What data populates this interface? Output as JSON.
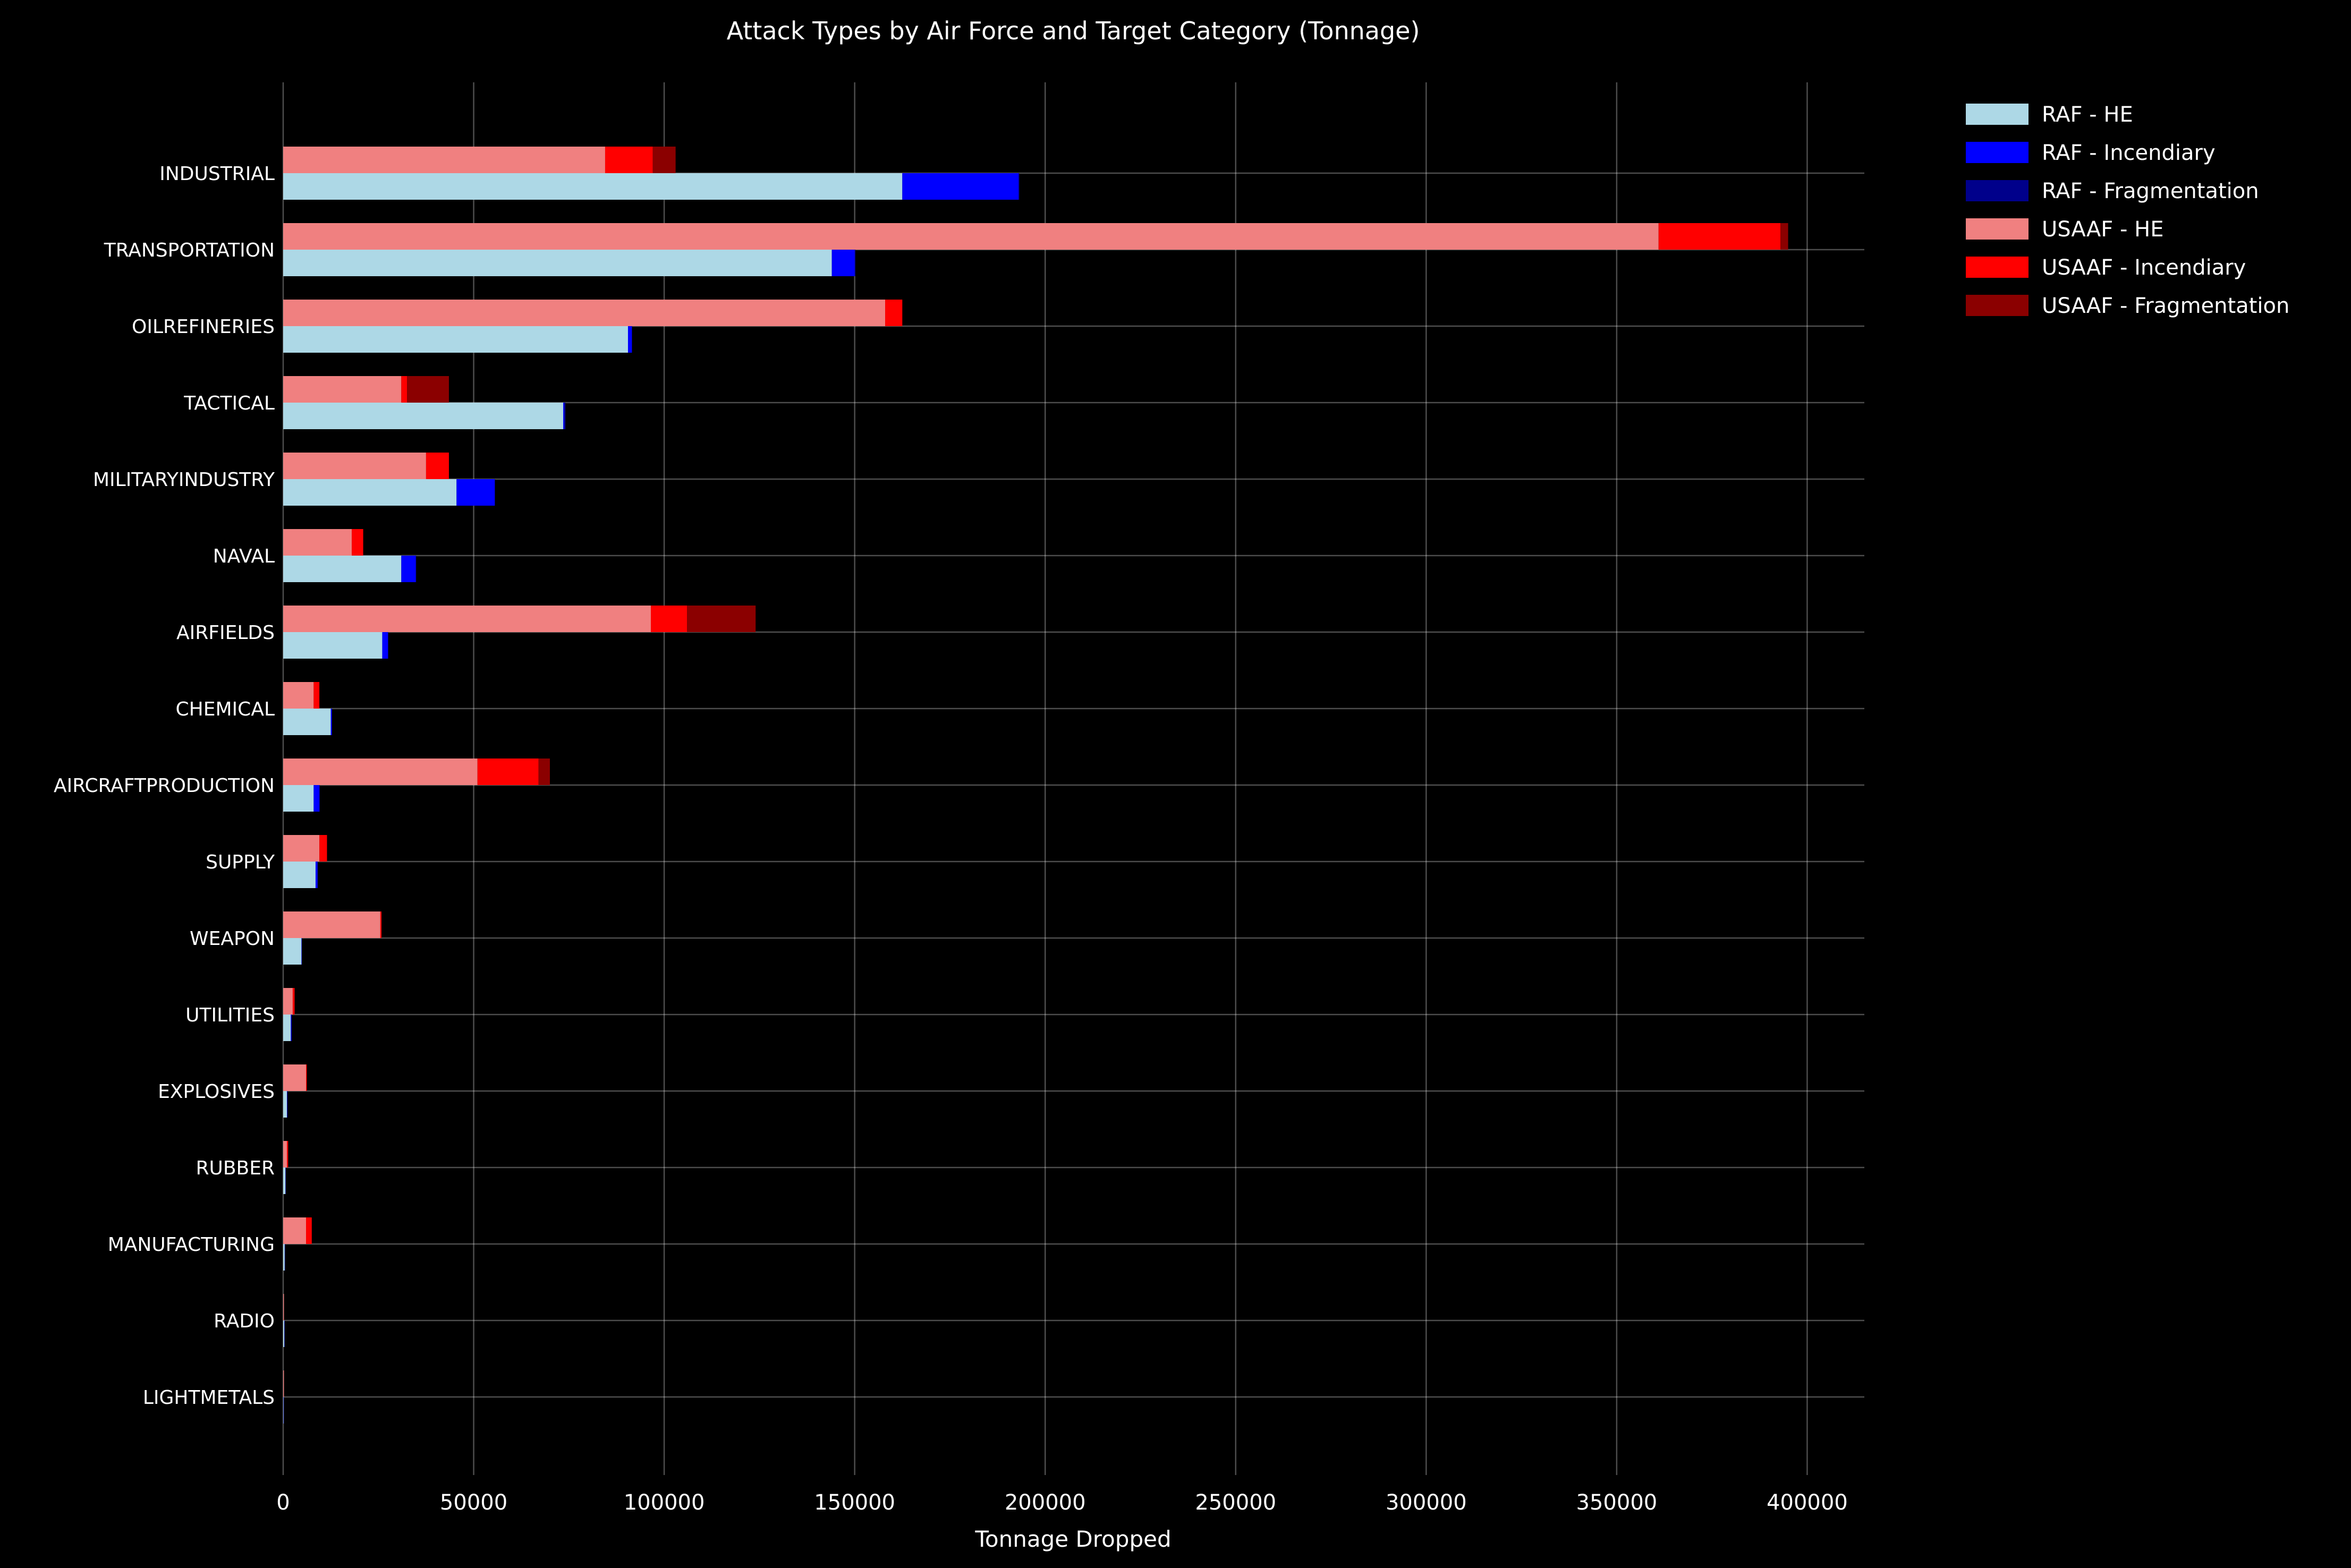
{
  "chart_data": {
    "type": "bar",
    "orientation": "horizontal",
    "stacked": true,
    "title": "Attack Types by Air Force and Target Category (Tonnage)",
    "xlabel": "Tonnage Dropped",
    "ylabel": "",
    "xlim": [
      0,
      415000
    ],
    "xticks": [
      0,
      50000,
      100000,
      150000,
      200000,
      250000,
      300000,
      350000,
      400000
    ],
    "grid": true,
    "legend_position": "outside-top-right",
    "categories": [
      "INDUSTRIAL",
      "TRANSPORTATION",
      "OILREFINERIES",
      "TACTICAL",
      "MILITARYINDUSTRY",
      "NAVAL",
      "AIRFIELDS",
      "CHEMICAL",
      "AIRCRAFTPRODUCTION",
      "SUPPLY",
      "WEAPON",
      "UTILITIES",
      "EXPLOSIVES",
      "RUBBER",
      "MANUFACTURING",
      "RADIO",
      "LIGHTMETALS"
    ],
    "groups": [
      {
        "name": "RAF",
        "series": [
          {
            "name": "RAF - HE",
            "color": "#add8e6",
            "values": [
              162500,
              144000,
              90500,
              73500,
              45500,
              31000,
              26000,
              12500,
              8000,
              8500,
              4800,
              2000,
              1000,
              600,
              400,
              300,
              100
            ]
          },
          {
            "name": "RAF - Incendiary",
            "color": "#0000ff",
            "values": [
              30500,
              6000,
              1000,
              300,
              10000,
              3800,
              1500,
              300,
              1500,
              500,
              100,
              200,
              100,
              50,
              50,
              50,
              20
            ]
          },
          {
            "name": "RAF - Fragmentation",
            "color": "#00008b",
            "values": [
              200,
              200,
              100,
              300,
              100,
              100,
              100,
              0,
              100,
              100,
              0,
              0,
              0,
              0,
              0,
              0,
              0
            ]
          }
        ]
      },
      {
        "name": "USAAF",
        "series": [
          {
            "name": "USAAF - HE",
            "color": "#f08080",
            "values": [
              84500,
              361000,
              158000,
              31000,
              37500,
              18000,
              96500,
              8000,
              51000,
              9500,
              25500,
              2500,
              6000,
              1000,
              6000,
              200,
              200
            ]
          },
          {
            "name": "USAAF - Incendiary",
            "color": "#ff0000",
            "values": [
              12500,
              32000,
              4500,
              1500,
              6000,
              3000,
              9500,
              1500,
              16000,
              2000,
              300,
              500,
              200,
              300,
              1500,
              0,
              0
            ]
          },
          {
            "name": "USAAF - Fragmentation",
            "color": "#8b0000",
            "values": [
              6000,
              2000,
              0,
              11000,
              0,
              0,
              18000,
              0,
              3000,
              0,
              0,
              0,
              0,
              0,
              0,
              0,
              0
            ]
          }
        ]
      }
    ]
  }
}
